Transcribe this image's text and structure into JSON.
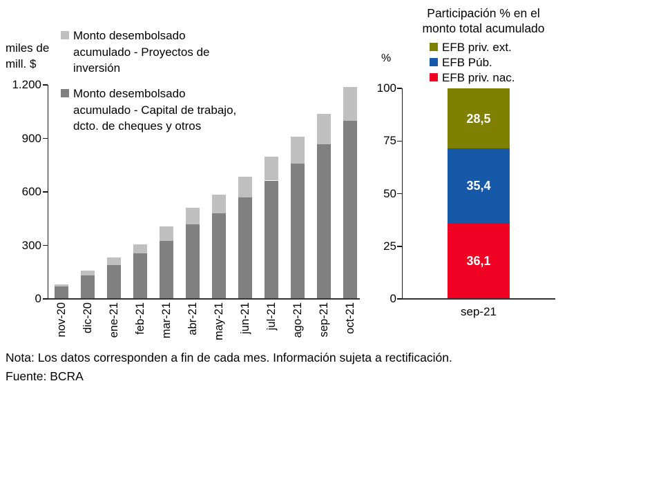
{
  "note": {
    "line1": "Nota: Los datos corresponden a fin de cada mes. Información sujeta a rectificación.",
    "line2": "Fuente: BCRA"
  },
  "chart_data": [
    {
      "type": "bar",
      "stacked": true,
      "title": "",
      "unit_label": "miles de mill. $",
      "xlabel": "",
      "ylim": [
        0,
        1200
      ],
      "grid": false,
      "legend_position": "top-left",
      "yticks": [
        {
          "value": 1200,
          "label": "1.200"
        },
        {
          "value": 900,
          "label": "900"
        },
        {
          "value": 600,
          "label": "600"
        },
        {
          "value": 300,
          "label": "300"
        },
        {
          "value": 0,
          "label": "0"
        }
      ],
      "categories": [
        "nov-20",
        "dic-20",
        "ene-21",
        "feb-21",
        "mar-21",
        "abr-21",
        "may-21",
        "jun-21",
        "jul-21",
        "ago-21",
        "sep-21",
        "oct-21"
      ],
      "series": [
        {
          "name": "Monto desembolsado\nacumulado - Capital de trabajo,\ndcto. de cheques y otros",
          "color": "#808080",
          "values": [
            70,
            133,
            191,
            257,
            327,
            419,
            481,
            571,
            664,
            758,
            868,
            997
          ]
        },
        {
          "name": "Monto desembolsado\nacumulado - Proyectos de\ninversión",
          "color": "#BFBFBF",
          "values": [
            12,
            27,
            42,
            48,
            79,
            91,
            104,
            116,
            133,
            151,
            170,
            190
          ]
        }
      ]
    },
    {
      "type": "bar",
      "stacked": true,
      "title": "Participación % en el monto total acumulado",
      "ylabel": "%",
      "ylim": [
        0,
        100
      ],
      "grid": false,
      "legend_position": "top",
      "yticks": [
        {
          "value": 100,
          "label": "100"
        },
        {
          "value": 75,
          "label": "75"
        },
        {
          "value": 50,
          "label": "50"
        },
        {
          "value": 25,
          "label": "25"
        },
        {
          "value": 0,
          "label": "0"
        }
      ],
      "categories": [
        "sep-21"
      ],
      "series": [
        {
          "name": "EFB priv. nac.",
          "color": "#F00023",
          "values": [
            36.1
          ],
          "data_label": "36,1"
        },
        {
          "name": "EFB Púb.",
          "color": "#1559A8",
          "values": [
            35.4
          ],
          "data_label": "35,4"
        },
        {
          "name": "EFB priv. ext.",
          "color": "#7F7F00",
          "values": [
            28.5
          ],
          "data_label": "28,5"
        }
      ]
    }
  ]
}
